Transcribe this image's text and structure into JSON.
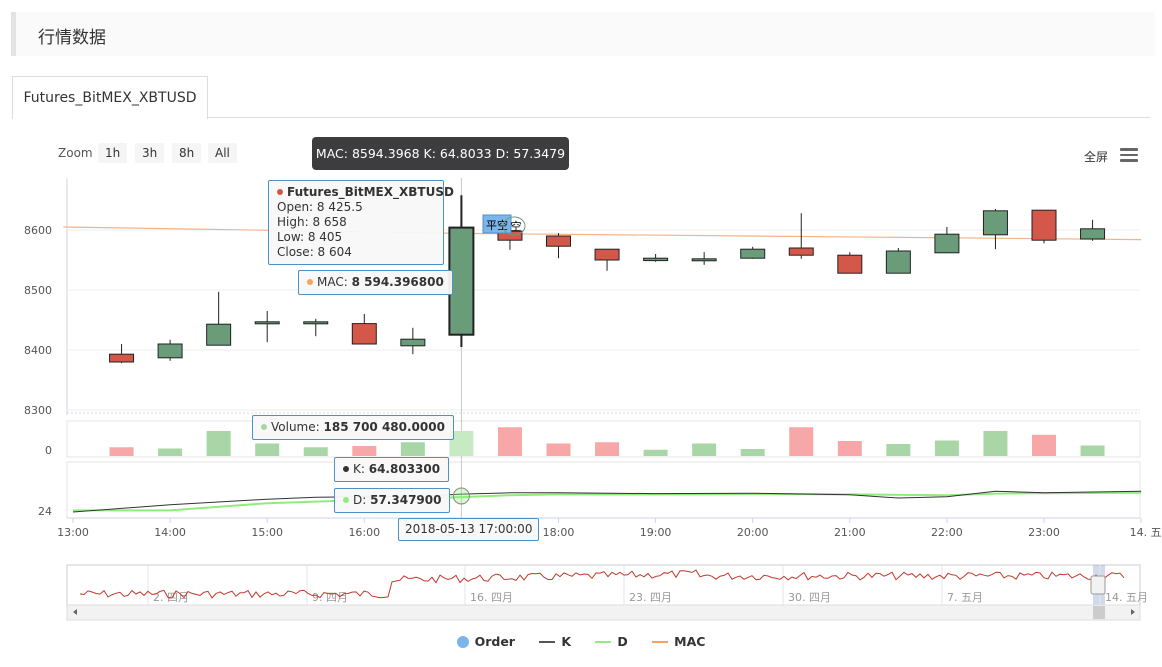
{
  "page": {
    "title": "行情数据",
    "tab": "Futures_BitMEX_XBTUSD"
  },
  "toolbar": {
    "zoom_label": "Zoom",
    "zoom_options": [
      "1h",
      "3h",
      "8h",
      "All"
    ],
    "fullscreen": "全屏",
    "menu_icon": "hamburger-menu-icon"
  },
  "hover": {
    "top_tip": "MAC: 8594.3968 K: 64.8033 D: 57.3479",
    "ohlc_title": "Futures_BitMEX_XBTUSD",
    "open": "Open: 8 425.5",
    "high": "High: 8 658",
    "low": "Low: 8 405",
    "close": "Close: 8 604",
    "mac_label": "MAC: ",
    "mac_value": "8 594.396800",
    "volume_label": "Volume: ",
    "volume_value": "185 700 480.0000",
    "k_label": "K: ",
    "k_value": "64.803300",
    "d_label": "D: ",
    "d_value": "57.347900",
    "time": "2018-05-13 17:00:00"
  },
  "flags": {
    "close_short": "平空",
    "short": "空"
  },
  "legend": [
    {
      "name": "Order",
      "color": "#7cb5ec",
      "kind": "dot"
    },
    {
      "name": "K",
      "color": "#555555",
      "kind": "line"
    },
    {
      "name": "D",
      "color": "#90ed7d",
      "kind": "line"
    },
    {
      "name": "MAC",
      "color": "#f7a35c",
      "kind": "line"
    }
  ],
  "colors": {
    "up": "#6a9c7a",
    "down": "#d3584a",
    "vol_up": "#a9d6a6",
    "vol_down": "#f7a7a7",
    "mac": "#f0b48a"
  },
  "chart_data": {
    "type": "candlestick",
    "x_ticks": [
      "13:00",
      "14:00",
      "15:00",
      "16:00",
      "17:00",
      "18:00",
      "19:00",
      "20:00",
      "21:00",
      "22:00",
      "23:00",
      "14. 五月"
    ],
    "y_ticks": [
      8300,
      8400,
      8500,
      8600
    ],
    "ylim": [
      8300,
      8680
    ],
    "volume_ticks": [
      0
    ],
    "kd_ticks": [
      24
    ],
    "candles": [
      {
        "t": 13.5,
        "open": 8393,
        "high": 8410,
        "low": 8378,
        "close": 8380
      },
      {
        "t": 14.0,
        "open": 8387,
        "high": 8417,
        "low": 8382,
        "close": 8410
      },
      {
        "t": 14.5,
        "open": 8408,
        "high": 8497,
        "low": 8408,
        "close": 8443
      },
      {
        "t": 15.0,
        "open": 8444,
        "high": 8465,
        "low": 8413,
        "close": 8447
      },
      {
        "t": 15.5,
        "open": 8447,
        "high": 8452,
        "low": 8423,
        "close": 8447
      },
      {
        "t": 16.0,
        "open": 8444,
        "high": 8460,
        "low": 8410,
        "close": 8410
      },
      {
        "t": 16.5,
        "open": 8407,
        "high": 8437,
        "low": 8393,
        "close": 8418
      },
      {
        "t": 17.0,
        "open": 8425.5,
        "high": 8658,
        "low": 8405,
        "close": 8604
      },
      {
        "t": 17.5,
        "open": 8598,
        "high": 8605,
        "low": 8567,
        "close": 8583
      },
      {
        "t": 18.0,
        "open": 8590,
        "high": 8595,
        "low": 8553,
        "close": 8573
      },
      {
        "t": 18.5,
        "open": 8568,
        "high": 8568,
        "low": 8532,
        "close": 8550
      },
      {
        "t": 19.0,
        "open": 8549,
        "high": 8560,
        "low": 8547,
        "close": 8553
      },
      {
        "t": 19.5,
        "open": 8552,
        "high": 8563,
        "low": 8542,
        "close": 8552
      },
      {
        "t": 20.0,
        "open": 8553,
        "high": 8572,
        "low": 8552,
        "close": 8568
      },
      {
        "t": 20.5,
        "open": 8570,
        "high": 8628,
        "low": 8552,
        "close": 8558
      },
      {
        "t": 21.0,
        "open": 8558,
        "high": 8563,
        "low": 8528,
        "close": 8528
      },
      {
        "t": 21.5,
        "open": 8528,
        "high": 8570,
        "low": 8528,
        "close": 8565
      },
      {
        "t": 22.0,
        "open": 8562,
        "high": 8605,
        "low": 8562,
        "close": 8593
      },
      {
        "t": 22.5,
        "open": 8592,
        "high": 8635,
        "low": 8568,
        "close": 8632
      },
      {
        "t": 23.0,
        "open": 8633,
        "high": 8633,
        "low": 8578,
        "close": 8583
      },
      {
        "t": 23.5,
        "open": 8585,
        "high": 8617,
        "low": 8582,
        "close": 8602
      }
    ],
    "mac": [
      [
        12.9,
        8605
      ],
      [
        17,
        8594.4
      ],
      [
        24,
        8584
      ]
    ],
    "volume_rel": [
      0.35,
      0.3,
      1.0,
      0.5,
      0.35,
      0.4,
      0.55,
      1.0,
      1.15,
      0.5,
      0.55,
      0.25,
      0.5,
      0.28,
      1.15,
      0.6,
      0.48,
      0.62,
      1.0,
      0.85,
      0.42
    ],
    "k_line": [
      [
        13,
        20
      ],
      [
        14,
        38
      ],
      [
        15,
        52
      ],
      [
        15.5,
        57
      ],
      [
        16,
        58
      ],
      [
        16.5,
        58
      ],
      [
        17,
        64.8
      ],
      [
        17.5,
        68
      ],
      [
        18,
        68
      ],
      [
        19,
        66
      ],
      [
        20,
        67
      ],
      [
        21,
        63
      ],
      [
        21.5,
        55
      ],
      [
        22,
        58
      ],
      [
        22.5,
        72
      ],
      [
        23,
        68
      ],
      [
        24,
        72
      ]
    ],
    "d_line": [
      [
        13,
        24
      ],
      [
        14,
        24
      ],
      [
        15,
        42
      ],
      [
        16,
        50
      ],
      [
        16.5,
        53
      ],
      [
        17,
        57.3
      ],
      [
        17.5,
        62
      ],
      [
        18,
        64
      ],
      [
        19,
        64
      ],
      [
        20,
        65
      ],
      [
        21,
        64
      ],
      [
        22,
        62
      ],
      [
        22.5,
        66
      ],
      [
        23,
        67
      ],
      [
        24,
        68
      ]
    ],
    "navigator_ticks": [
      "2. 四月",
      "9. 四月",
      "16. 四月",
      "23. 四月",
      "30. 四月",
      "7. 五月",
      "14. 五月"
    ]
  }
}
